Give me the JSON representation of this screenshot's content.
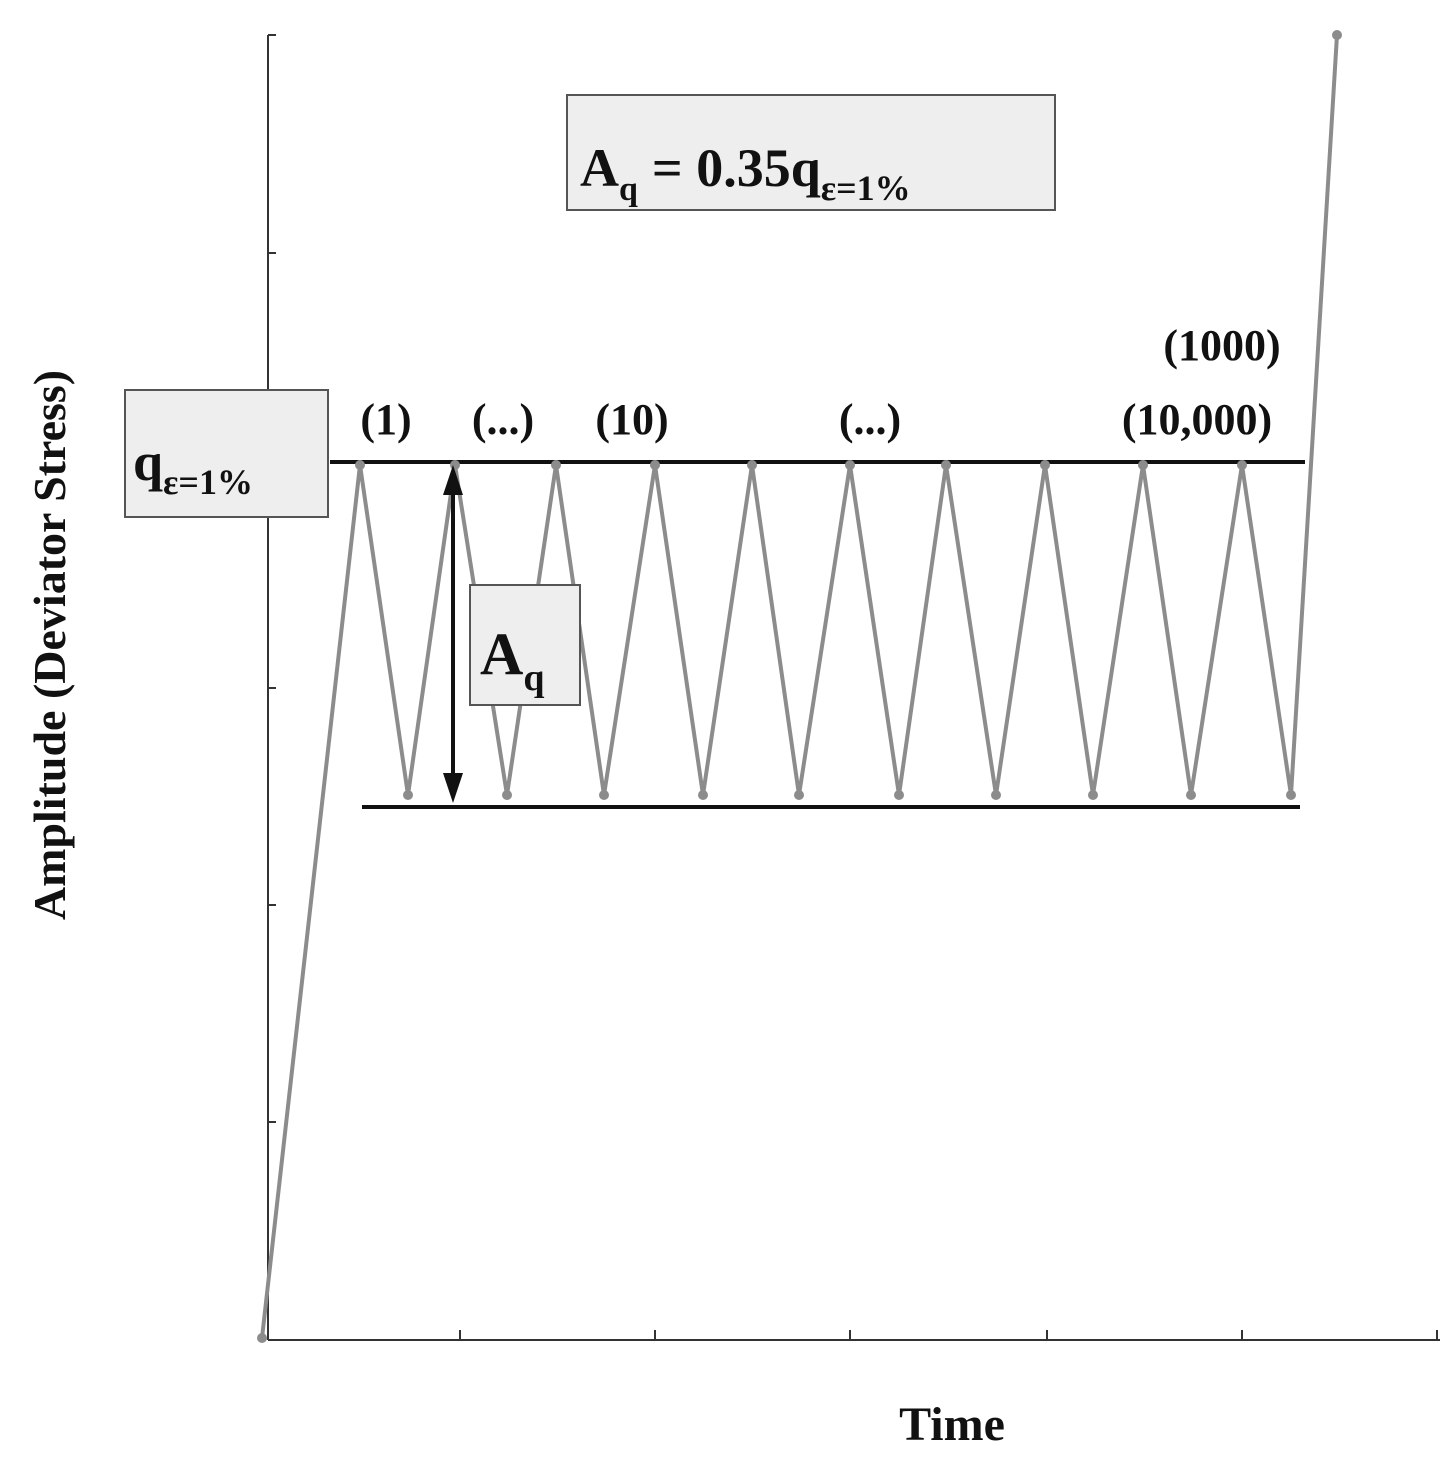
{
  "chart_data": {
    "type": "line",
    "xlabel": "Time",
    "ylabel": "Amplitude (Deviator Stress)",
    "formula": {
      "lhs_main": "A",
      "lhs_sub": "q",
      "rhs_main": "= 0.35q",
      "rhs_sub": "ε=1%"
    },
    "q_label": {
      "main": "q",
      "sub": "ε=1%"
    },
    "amplitude_label": {
      "main": "A",
      "sub": "q"
    },
    "cycle_labels": [
      "(1)",
      "(...)",
      "(10)",
      "(...)",
      "(10,000)",
      "(1000)"
    ],
    "colors": {
      "waveform": "#8c8c8c",
      "reference_lines": "#111111",
      "axes": "#333333",
      "box_fill": "#eeeeee"
    }
  }
}
